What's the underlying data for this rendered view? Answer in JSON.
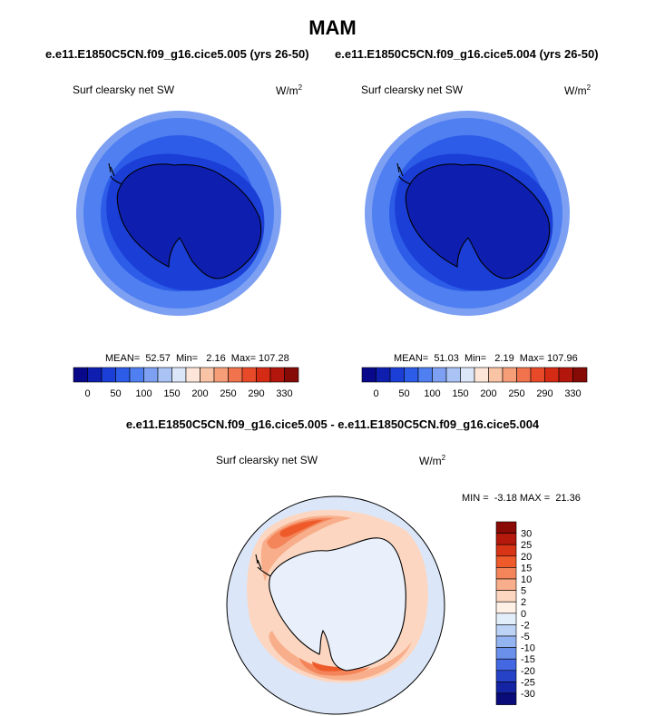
{
  "page_title": "MAM",
  "panels": [
    {
      "case_title": "e.e11.E1850C5CN.f09_g16.cice5.005 (yrs 26-50)",
      "variable": "Surf clearsky net SW",
      "units": "W/m",
      "units_exponent": "2",
      "stats": "MEAN=  52.57  Min=   2.16  Max= 107.28",
      "colorbar": {
        "colors": [
          "#08088a",
          "#0e1fb0",
          "#1a3ed6",
          "#2c5ce8",
          "#4f7ff0",
          "#7da0f3",
          "#a9c3f5",
          "#dbe7f9",
          "#fde6d8",
          "#f9c3a5",
          "#f59e78",
          "#f1734d",
          "#e84a29",
          "#d52a14",
          "#b2160c",
          "#860a06"
        ],
        "labels": [
          "0",
          "50",
          "100",
          "150",
          "200",
          "250",
          "290",
          "330"
        ]
      }
    },
    {
      "case_title": "e.e11.E1850C5CN.f09_g16.cice5.004 (yrs 26-50)",
      "variable": "Surf clearsky net SW",
      "units": "W/m",
      "units_exponent": "2",
      "stats": "MEAN=  51.03  Min=   2.19  Max= 107.96",
      "colorbar": {
        "colors": [
          "#08088a",
          "#0e1fb0",
          "#1a3ed6",
          "#2c5ce8",
          "#4f7ff0",
          "#7da0f3",
          "#a9c3f5",
          "#dbe7f9",
          "#fde6d8",
          "#f9c3a5",
          "#f59e78",
          "#f1734d",
          "#e84a29",
          "#d52a14",
          "#b2160c",
          "#860a06"
        ],
        "labels": [
          "0",
          "50",
          "100",
          "150",
          "200",
          "250",
          "290",
          "330"
        ]
      }
    }
  ],
  "difference": {
    "title": "e.e11.E1850C5CN.f09_g16.cice5.005 - e.e11.E1850C5CN.f09_g16.cice5.004",
    "variable": "Surf clearsky net SW",
    "units": "W/m",
    "units_exponent": "2",
    "stats": "MIN =  -3.18 MAX =  21.36",
    "colorbar": {
      "colors": [
        "#8a0a06",
        "#b4190c",
        "#d83416",
        "#ee5a2a",
        "#f4855a",
        "#f8ae8a",
        "#fcd6c0",
        "#fff0e6",
        "#e3eefb",
        "#bcd3f6",
        "#94b4f1",
        "#6a90eb",
        "#4368e2",
        "#2643c8",
        "#1424a2",
        "#0a0c7a"
      ],
      "labels": [
        "30",
        "25",
        "20",
        "15",
        "10",
        "5",
        "2",
        "0",
        "-2",
        "-5",
        "-10",
        "-15",
        "-20",
        "-25",
        "-30"
      ]
    }
  },
  "colors": {
    "ocean_outer": "#4f7ff0",
    "ocean_mid": "#2c5ce8",
    "ice_inner": "#1a3ed6",
    "continent": "#0e1fb0",
    "rim": "#7da0f3",
    "diff_background": "#dbe7f9"
  }
}
